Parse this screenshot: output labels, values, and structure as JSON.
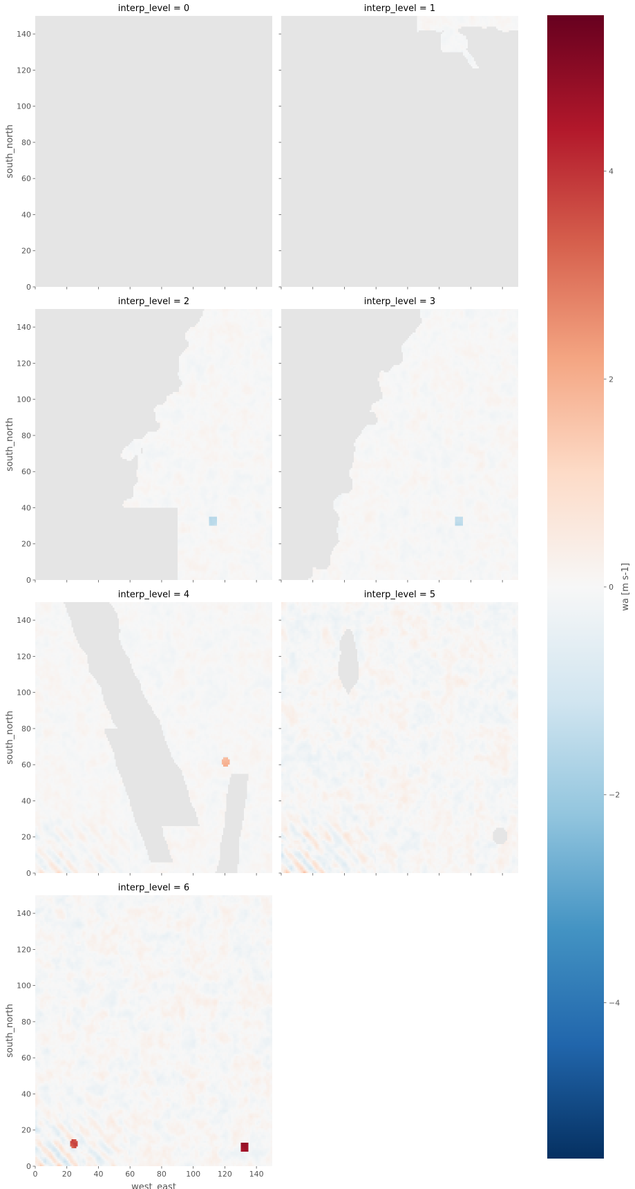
{
  "chart_data": {
    "type": "heatmap",
    "colormap": "RdBu_r",
    "background_color": "#e5e5e5",
    "nan_color": "#e5e5e5",
    "facet_key": "interp_level",
    "xlabel": "west_east",
    "ylabel": "south_north",
    "xlim": [
      0,
      150
    ],
    "ylim": [
      0,
      150
    ],
    "x_ticks": [
      0,
      20,
      40,
      60,
      80,
      100,
      120,
      140
    ],
    "y_ticks": [
      0,
      20,
      40,
      60,
      80,
      100,
      120,
      140
    ],
    "panels": [
      {
        "title": "interp_level = 0",
        "level": 0
      },
      {
        "title": "interp_level = 1",
        "level": 1
      },
      {
        "title": "interp_level = 2",
        "level": 2
      },
      {
        "title": "interp_level = 3",
        "level": 3
      },
      {
        "title": "interp_level = 4",
        "level": 4
      },
      {
        "title": "interp_level = 5",
        "level": 5
      },
      {
        "title": "interp_level = 6",
        "level": 6
      }
    ],
    "colorbar": {
      "label": "wa [m s-1]",
      "vmin": -5.5,
      "vmax": 5.5,
      "ticks": [
        -4,
        -2,
        0,
        2,
        4
      ],
      "tick_labels": [
        "−4",
        "−2",
        "0",
        "2",
        "4"
      ]
    }
  }
}
